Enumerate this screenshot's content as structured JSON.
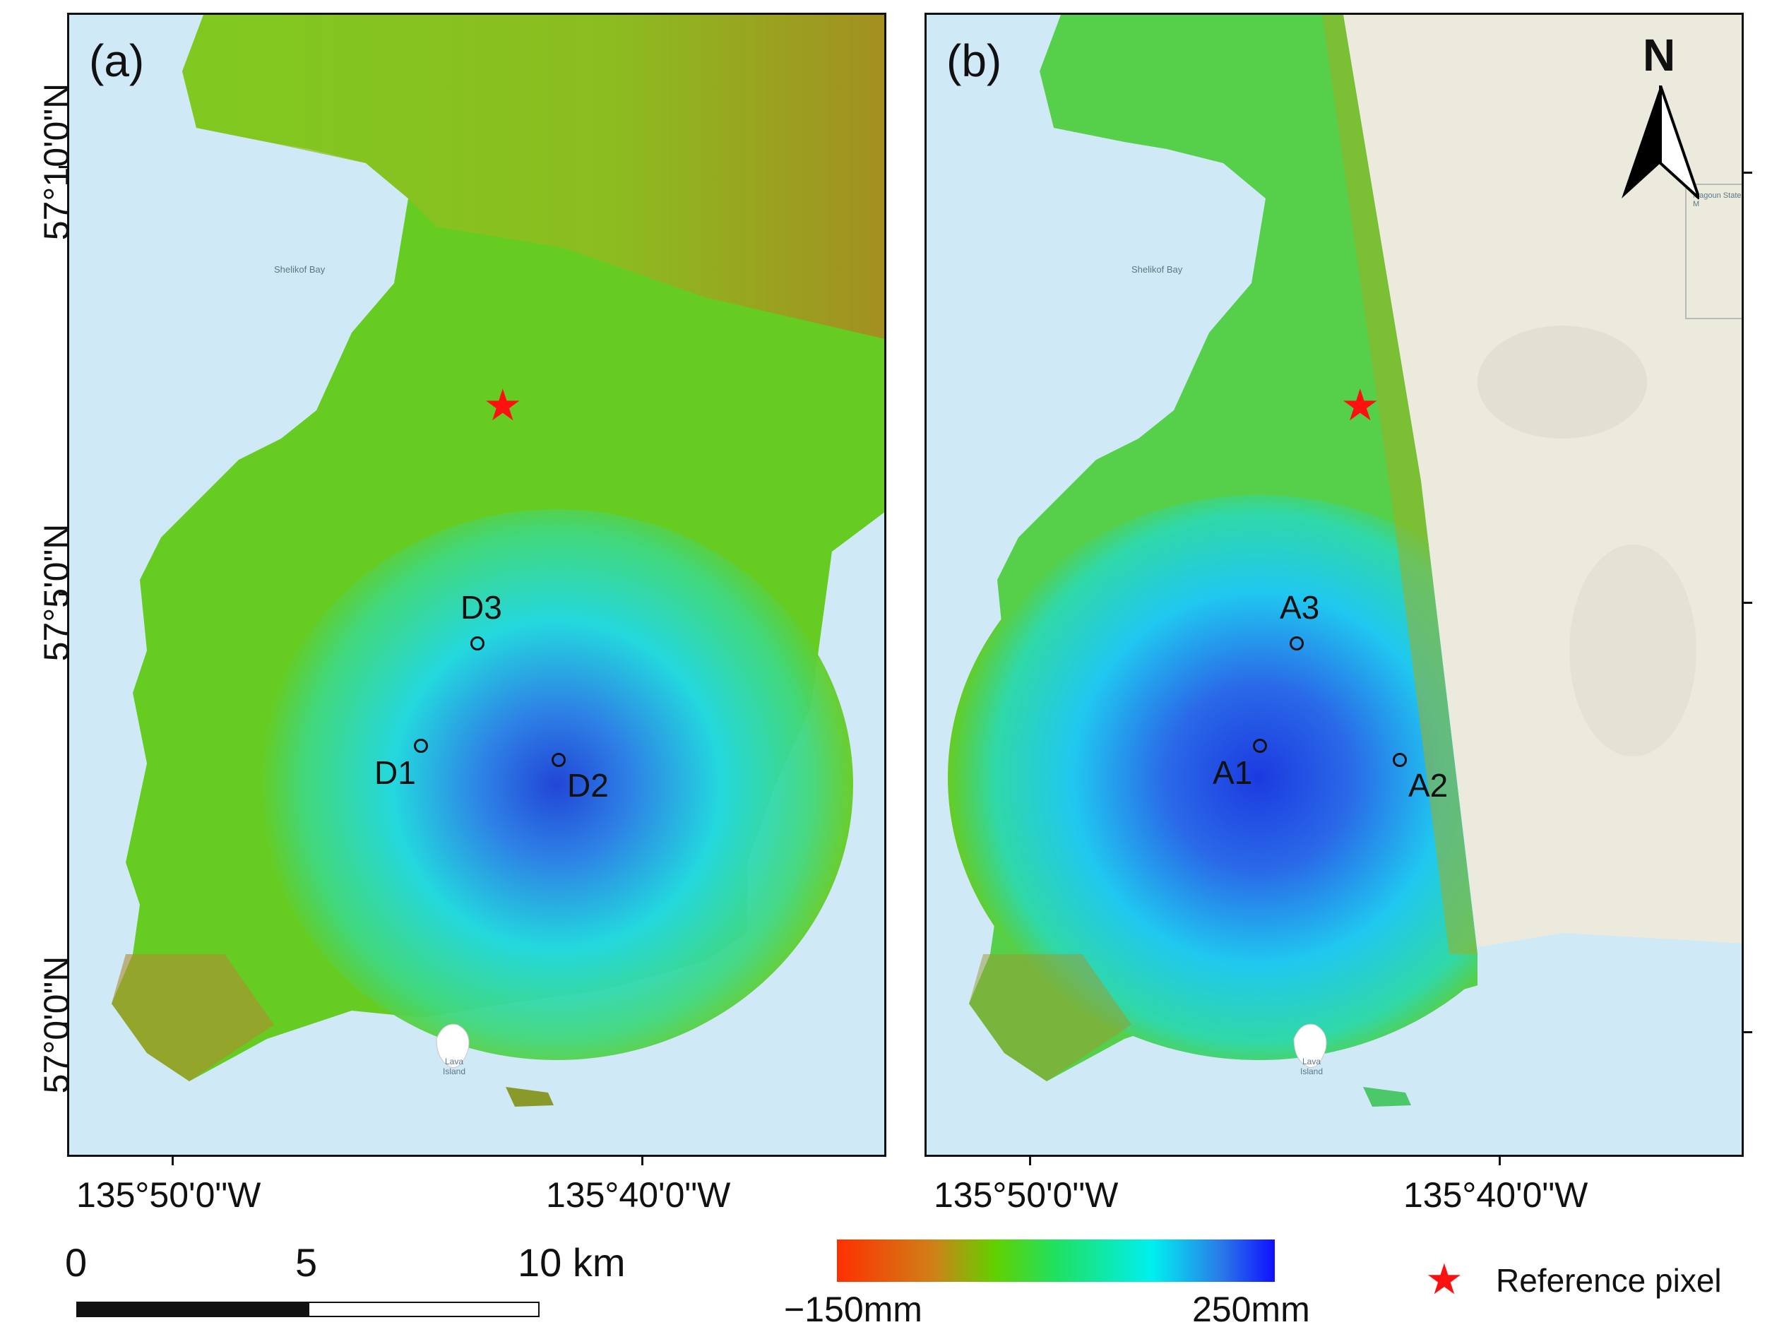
{
  "panels": [
    {
      "label": "(a)",
      "points": [
        "D1",
        "D2",
        "D3"
      ]
    },
    {
      "label": "(b)",
      "points": [
        "A1",
        "A2",
        "A3"
      ]
    }
  ],
  "map": {
    "place_names": [
      "Shelikof Bay",
      "Lava Island",
      "Magoun State M"
    ],
    "lat_labels": [
      "57°10'0\"N",
      "57°5'0\"N",
      "57°0'0\"N"
    ],
    "lon_labels": [
      "135°50'0\"W",
      "135°40'0\"W"
    ],
    "north_arrow": "N"
  },
  "scale_bar": {
    "labels": [
      "0",
      "5",
      "10 km"
    ]
  },
  "colorbar": {
    "min_label": "−150mm",
    "max_label": "250mm",
    "colors": [
      "#ff3000",
      "#62d000",
      "#00f0f0",
      "#1010ff"
    ]
  },
  "legend": {
    "star_label": "Reference pixel",
    "star_color": "#ff1010"
  },
  "colors": {
    "water": "#cfe9f7",
    "land_basemap": "#eceadd",
    "stable_deformation": "#62d000"
  }
}
